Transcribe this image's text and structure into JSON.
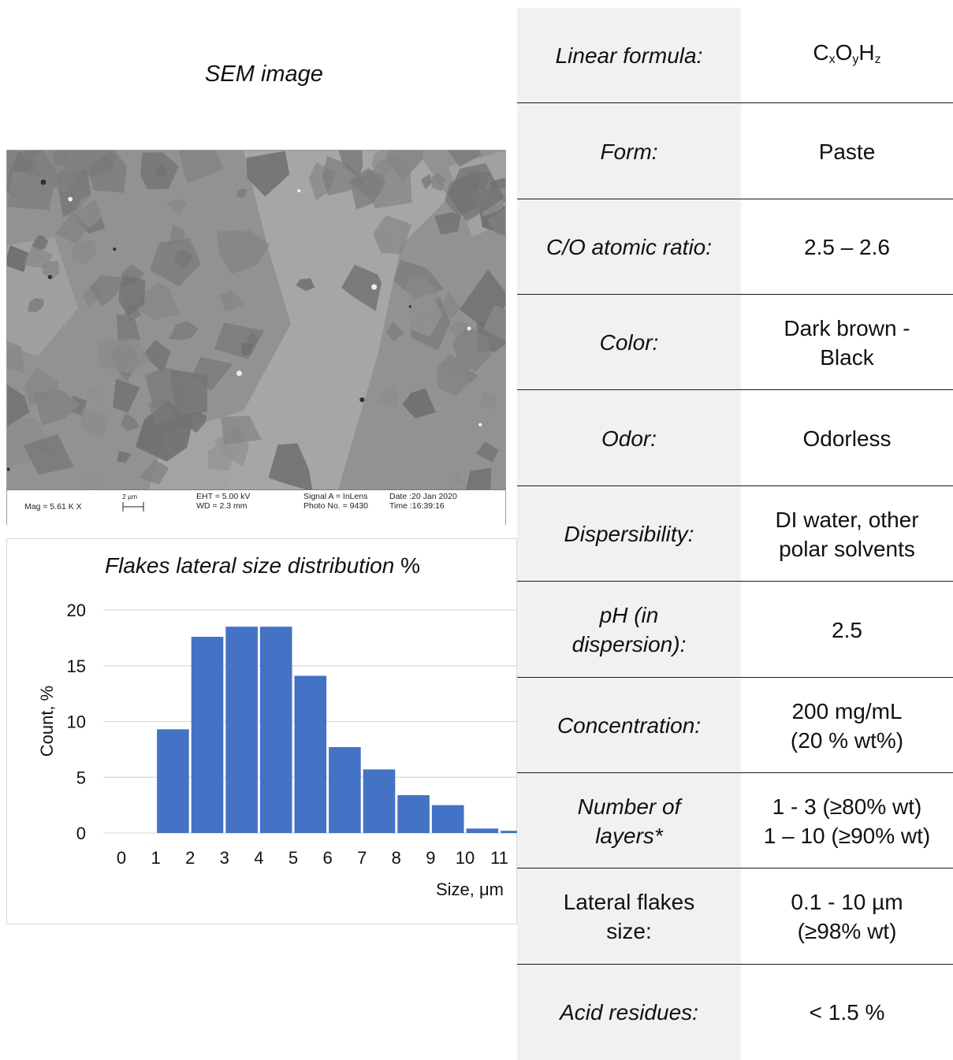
{
  "sem": {
    "caption": "SEM image",
    "info": {
      "mag": "Mag =   5.61 K X",
      "scale": "2 µm",
      "eht": "EHT =  5.00 kV",
      "wd": "WD =  2.3 mm",
      "signal": "Signal A = InLens",
      "photo": "Photo No. = 9430",
      "date": "Date :20 Jan 2020",
      "time": "Time :16:39:16"
    }
  },
  "histogram": {
    "title_italic": "Flakes lateral size distribution",
    "title_suffix": " %",
    "xlabel": "Size, μm",
    "ylabel": "Count, %",
    "bar_color": "#4472C4"
  },
  "chart_data": {
    "type": "bar",
    "categories": [
      "0",
      "1",
      "2",
      "3",
      "4",
      "5",
      "6",
      "7",
      "8",
      "9",
      "10",
      "11"
    ],
    "values": [
      9.3,
      17.6,
      18.5,
      18.5,
      14.1,
      7.7,
      5.7,
      3.4,
      2.5,
      0.4,
      0.2
    ],
    "x": [
      1.5,
      2.5,
      3.5,
      4.5,
      5.5,
      6.5,
      7.5,
      8.5,
      9.5,
      10.5,
      11.5
    ],
    "title": "Flakes lateral size distribution %",
    "xlabel": "Size, μm",
    "ylabel": "Count, %",
    "xlim": [
      0,
      11.5
    ],
    "ylim": [
      0,
      20
    ],
    "yticks": [
      "0",
      "5",
      "10",
      "15",
      "20"
    ],
    "grid": true
  },
  "properties": {
    "rows": [
      {
        "label": "Linear formula:",
        "value_formula": true,
        "value": "",
        "italic": true
      },
      {
        "label": "Form:",
        "value": "Paste",
        "italic": true
      },
      {
        "label": "C/O atomic ratio:",
        "value": "2.5 – 2.6",
        "italic": true
      },
      {
        "label": "Color:",
        "value": "Dark brown -\nBlack",
        "italic": true
      },
      {
        "label": "Odor:",
        "value": "Odorless",
        "italic": true
      },
      {
        "label": "Dispersibility:",
        "value": "DI water, other\npolar solvents",
        "italic": true
      },
      {
        "label": "pH (in\ndispersion):",
        "value": "2.5",
        "italic": true
      },
      {
        "label": "Concentration:",
        "value": "200 mg/mL\n(20 % wt%)",
        "italic": true
      },
      {
        "label": "Number of\nlayers*",
        "value": "1 - 3 (≥80% wt)\n1 – 10 (≥90% wt)",
        "italic": true
      },
      {
        "label": "Lateral flakes\nsize:",
        "value": "0.1 - 10 µm\n(≥98% wt)",
        "italic": false
      },
      {
        "label": "Acid residues:",
        "value": "< 1.5 %",
        "italic": true
      }
    ],
    "formula": {
      "c": "C",
      "x": "x",
      "o": "O",
      "y": "y",
      "h": "H",
      "z": "z"
    }
  }
}
